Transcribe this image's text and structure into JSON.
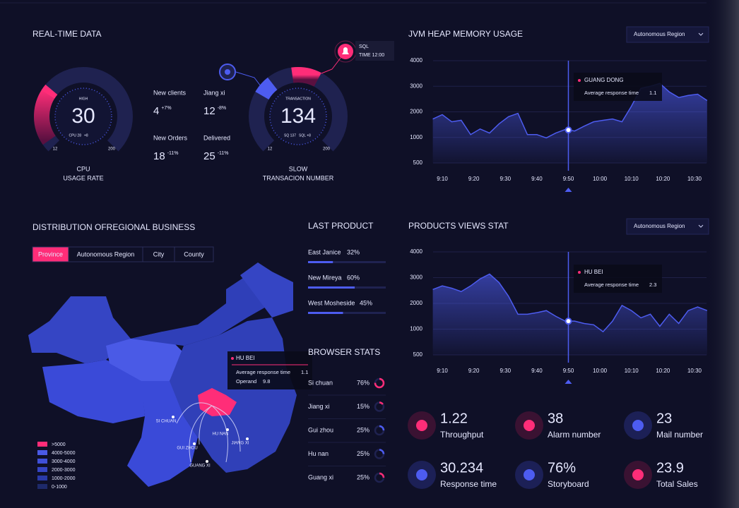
{
  "realtime": {
    "title": "REAL-TIME DATA",
    "cpu_gauge": {
      "label": "HIGH",
      "value": "30",
      "sub": "CPU 28",
      "sub_delta": "+8",
      "min": "12",
      "max": "200",
      "caption": [
        "CPU",
        "USAGE RATE"
      ]
    },
    "slow_gauge": {
      "label": "TRANSACTION",
      "value": "134",
      "sub": "SQ 137",
      "sub_delta": "SQL +8",
      "min": "12",
      "max": "200",
      "caption": [
        "SLOW",
        "TRANSACION NUMBER"
      ],
      "alert": [
        "SQL",
        "TIME 12:00"
      ]
    },
    "stats": [
      {
        "label": "New clients",
        "value": "4",
        "delta": "+7%"
      },
      {
        "label": "Jiang xi",
        "value": "12",
        "delta": "-8%"
      },
      {
        "label": "New Orders",
        "value": "18",
        "delta": "-11%"
      },
      {
        "label": "Delivered",
        "value": "25",
        "delta": "-11%"
      }
    ]
  },
  "chart_data": [
    {
      "type": "line",
      "title": "JVM HEAP MEMORY USAGE",
      "dropdown": "Autonomous Region",
      "color": "#4d5cf0",
      "grid": true,
      "x": [
        "9:07",
        "9:10",
        "9:13",
        "9:16",
        "9:19",
        "9:22",
        "9:25",
        "9:28",
        "9:31",
        "9:34",
        "9:37",
        "9:40",
        "9:43",
        "9:46",
        "9:49",
        "9:52",
        "9:55",
        "9:58",
        "10:01",
        "10:04",
        "10:07",
        "10:10",
        "10:13",
        "10:16",
        "10:19",
        "10:22",
        "10:25",
        "10:28",
        "10:31",
        "10:34"
      ],
      "values": [
        1720,
        1890,
        1610,
        1670,
        1110,
        1330,
        1170,
        1530,
        1810,
        1940,
        1110,
        1110,
        990,
        1170,
        1310,
        1250,
        1440,
        1610,
        1670,
        1720,
        1610,
        2220,
        2920,
        3000,
        3110,
        2780,
        2560,
        2640,
        2690,
        2440
      ],
      "ylim": [
        500,
        4000
      ],
      "yticks": [
        500,
        1000,
        2000,
        3000,
        4000
      ],
      "xticks": [
        "9:10",
        "9:20",
        "9:30",
        "9:40",
        "9:50",
        "10:00",
        "10:10",
        "10:20",
        "10:30"
      ],
      "highlight": {
        "x": "9:50",
        "name": "GUANG DONG",
        "label": "Average response time",
        "value": "1.1"
      }
    },
    {
      "type": "line",
      "title": "PRODUCTS VIEWS STAT",
      "dropdown": "Autonomous Region",
      "color": "#4d5cf0",
      "grid": true,
      "x": [
        "9:07",
        "9:10",
        "9:13",
        "9:16",
        "9:19",
        "9:22",
        "9:25",
        "9:28",
        "9:31",
        "9:34",
        "9:37",
        "9:40",
        "9:43",
        "9:46",
        "9:49",
        "9:52",
        "9:55",
        "9:58",
        "10:01",
        "10:04",
        "10:07",
        "10:10",
        "10:13",
        "10:16",
        "10:19",
        "10:22",
        "10:25",
        "10:28",
        "10:31",
        "10:34"
      ],
      "values": [
        2540,
        2680,
        2590,
        2460,
        2680,
        2950,
        3140,
        2810,
        2280,
        1580,
        1580,
        1640,
        1720,
        1500,
        1310,
        1310,
        1220,
        1170,
        950,
        1310,
        1920,
        1720,
        1440,
        1580,
        1110,
        1580,
        1220,
        1720,
        1860,
        1720
      ],
      "ylim": [
        500,
        4000
      ],
      "yticks": [
        500,
        1000,
        2000,
        3000,
        4000
      ],
      "xticks": [
        "9:10",
        "9:20",
        "9:30",
        "9:40",
        "9:50",
        "10:00",
        "10:10",
        "10:20",
        "10:30"
      ],
      "highlight": {
        "x": "9:50",
        "name": "HU BEI",
        "label": "Average response time",
        "value": "2.3"
      }
    }
  ],
  "distribution": {
    "title": "DISTRIBUTION OFREGIONAL BUSINESS",
    "tabs": [
      "Province",
      "Autonomous Region",
      "City",
      "County"
    ],
    "active_tab": 0,
    "tooltip": {
      "name": "HU BEI",
      "rows": [
        {
          "label": "Average response time",
          "value": "1.1"
        },
        {
          "label": "Operand",
          "value": "9.8"
        }
      ]
    },
    "places": [
      "SI CHUAN",
      "HU NAN",
      "JIANG XI",
      "GUI ZHOU",
      "GUANG XI"
    ],
    "legend": [
      {
        "label": ">5000",
        "color": "#ff2d78"
      },
      {
        "label": "4000-5000",
        "color": "#4a5ae6"
      },
      {
        "label": "3000-4000",
        "color": "#3f50d8"
      },
      {
        "label": "2000-3000",
        "color": "#3545c4"
      },
      {
        "label": "1000-2000",
        "color": "#2a3aa8"
      },
      {
        "label": "0-1000",
        "color": "#1e2a6a"
      }
    ]
  },
  "last_product": {
    "title": "LAST PRODUCT",
    "names": [
      "East Janice",
      "New Mireya",
      "West Mosheside"
    ],
    "values": [
      32,
      60,
      45
    ],
    "value_labels": [
      "32%",
      "60%",
      "45%"
    ],
    "color": "#4d5cf0"
  },
  "browser_stats": {
    "title": "BROWSER STATS",
    "names": [
      "Si chuan",
      "Jiang xi",
      "Gui zhou",
      "Hu nan",
      "Guang xi"
    ],
    "values": [
      76,
      15,
      25,
      25,
      25
    ],
    "value_labels": [
      "76%",
      "15%",
      "25%",
      "25%",
      "25%"
    ],
    "colors": [
      "#ff2d78",
      "#ff2d78",
      "#4d5cf0",
      "#4d5cf0",
      "#ff2d78"
    ]
  },
  "kpis": [
    {
      "value": "1.22",
      "label": "Throughput"
    },
    {
      "value": "38",
      "label": "Alarm number"
    },
    {
      "value": "23",
      "label": "Mail number"
    },
    {
      "value": "30.234",
      "label": "Response time"
    },
    {
      "value": "76%",
      "label": "Storyboard"
    },
    {
      "value": "23.9",
      "label": "Total Sales"
    }
  ]
}
